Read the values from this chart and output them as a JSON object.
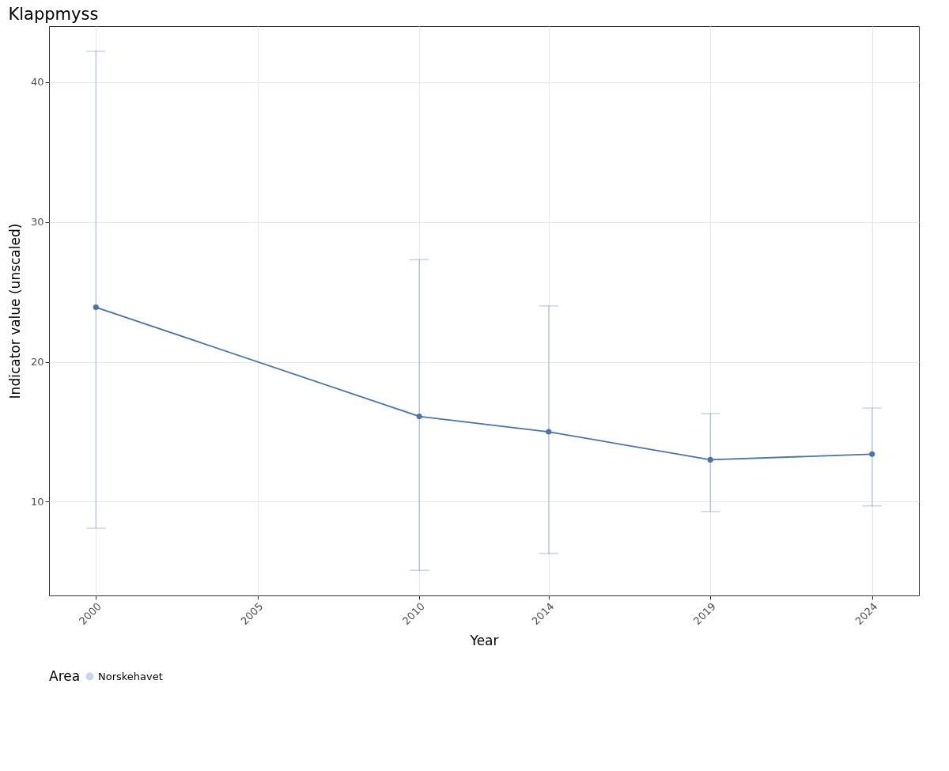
{
  "chart_data": {
    "type": "line",
    "title": "Klappmyss",
    "xlabel": "Year",
    "ylabel": "Indicator value (unscaled)",
    "legend_title": "Area",
    "x": [
      2000,
      2010,
      2014,
      2019,
      2024
    ],
    "series": [
      {
        "name": "Norskehavet",
        "color": "#4a74a5",
        "values": [
          23.9,
          16.1,
          15.0,
          13.0,
          13.4
        ],
        "errors": [
          [
            8.1,
            42.2
          ],
          [
            5.1,
            27.3
          ],
          [
            6.3,
            24.0
          ],
          [
            9.3,
            16.3
          ],
          [
            9.7,
            16.7
          ]
        ]
      }
    ],
    "xlim": [
      1998.55,
      2025.45
    ],
    "xticks": [
      2000,
      2005,
      2010,
      2014,
      2019,
      2024
    ],
    "ylim": [
      3.3,
      44.0
    ],
    "yticks": [
      10,
      20,
      30,
      40
    ],
    "grid": true,
    "legend": "bottom",
    "marker": "circle",
    "line_style": "solid"
  }
}
